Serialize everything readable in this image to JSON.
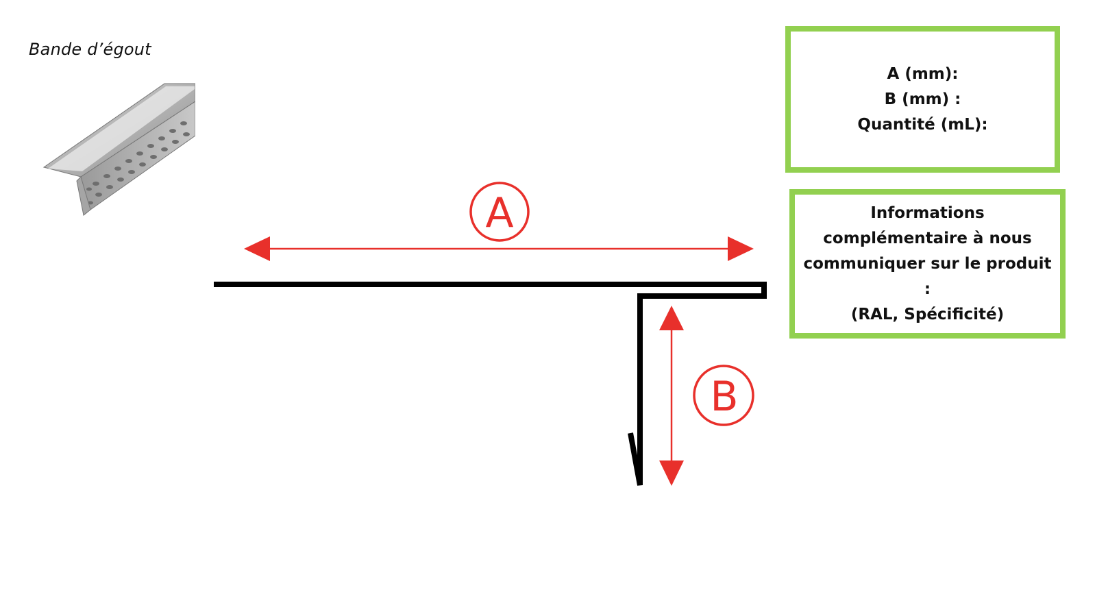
{
  "product": {
    "title": "Bande d’égout",
    "photo_icon": "drip-edge-profile-photo"
  },
  "dimensions": {
    "a_label": "A",
    "b_label": "B"
  },
  "dimensions_box": {
    "a_line": "A (mm):",
    "b_line": "B (mm) :",
    "quantity_line": "Quantité (mL):"
  },
  "info_box": {
    "line1": "Informations",
    "line2": "complémentaire à nous",
    "line3": "communiquer sur le produit :",
    "line4": "(RAL, Spécificité)"
  },
  "colors": {
    "dimension_red": "#e8302b",
    "box_green": "#92d050",
    "profile_black": "#000000"
  }
}
